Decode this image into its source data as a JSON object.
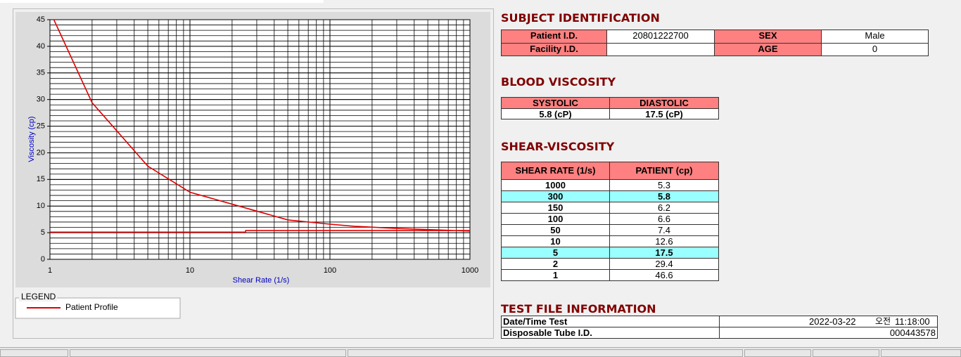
{
  "chart_data": {
    "type": "line",
    "x_label": "Shear Rate (1/s)",
    "y_label": "Viscosity (cp)",
    "x_scale": "log",
    "xlim": [
      1,
      1000
    ],
    "xticks": [
      1,
      10,
      100,
      1000
    ],
    "ylim": [
      0,
      45
    ],
    "yticks": [
      0,
      5,
      10,
      15,
      20,
      25,
      30,
      35,
      40,
      45
    ],
    "grid": true,
    "legend_title": "LEGEND",
    "series": [
      {
        "name": "Patient Profile",
        "color": "#e00000",
        "x": [
          1,
          2,
          5,
          10,
          50,
          100,
          150,
          300,
          1000,
          1000,
          25,
          25,
          1
        ],
        "values": [
          46.6,
          29.4,
          17.5,
          12.6,
          7.4,
          6.6,
          6.2,
          5.8,
          5.3,
          5.4,
          5.4,
          5.1,
          5.1
        ]
      }
    ]
  },
  "subject_identification": {
    "title": "SUBJECT IDENTIFICATION",
    "patient_id_label": "Patient I.D.",
    "patient_id": "20801222700",
    "sex_label": "SEX",
    "sex": "Male",
    "facility_id_label": "Facility I.D.",
    "age_label": "AGE",
    "age": 0
  },
  "blood_viscosity": {
    "title": "BLOOD VISCOSITY",
    "headers": [
      "SYSTOLIC",
      "DIASTOLIC"
    ],
    "values": [
      "5.8 (cP)",
      "17.5 (cP)"
    ]
  },
  "shear_viscosity": {
    "title": "SHEAR-VISCOSITY",
    "headers": [
      "SHEAR RATE (1/s)",
      "PATIENT (cp)"
    ],
    "rows": [
      [
        1000,
        5.3
      ],
      [
        300,
        5.8
      ],
      [
        150,
        6.2
      ],
      [
        100,
        6.6
      ],
      [
        50,
        7.4
      ],
      [
        10,
        12.6
      ],
      [
        5,
        17.5
      ],
      [
        2,
        29.4
      ],
      [
        1,
        46.6
      ]
    ],
    "highlight_rows": [
      1,
      6
    ],
    "highlight_color": "#99ffff"
  },
  "test_file": {
    "title": "TEST FILE INFORMATION",
    "date_label": "Date/Time Test",
    "date": "2022-03-22",
    "ampm": "오전",
    "time": "11:18:00",
    "tube_label": "Disposable Tube I.D.",
    "tube_id": "000443578"
  }
}
